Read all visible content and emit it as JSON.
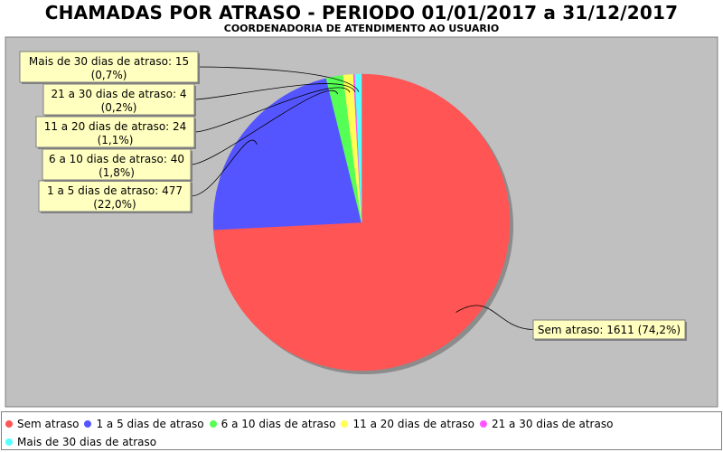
{
  "chart_data": {
    "type": "pie",
    "title": "CHAMADAS POR ATRASO - PERIODO 01/01/2017 a 31/12/2017",
    "subtitle": "COORDENADORIA DE ATENDIMENTO AO USUARIO",
    "legend_position": "bottom",
    "slices": [
      {
        "name": "Sem atraso",
        "value": 1611,
        "percent": "74,2%",
        "label": "Sem atraso: 1611 (74,2%)",
        "label_lines": [
          "Sem atraso: 1611 (74,2%)"
        ],
        "color": "#ff5555"
      },
      {
        "name": "1 a 5 dias de atraso",
        "value": 477,
        "percent": "22,0%",
        "label": "1 a 5 dias de atraso: 477",
        "label_lines": [
          "1 a 5 dias de atraso: 477",
          "(22,0%)"
        ],
        "color": "#5555ff"
      },
      {
        "name": "6 a 10 dias de atraso",
        "value": 40,
        "percent": "1,8%",
        "label": "6 a 10 dias de atraso: 40",
        "label_lines": [
          "6 a 10 dias de atraso: 40",
          "(1,8%)"
        ],
        "color": "#55ff55"
      },
      {
        "name": "11 a 20 dias de atraso",
        "value": 24,
        "percent": "1,1%",
        "label": "11 a 20 dias de atraso: 24",
        "label_lines": [
          "11 a 20 dias de atraso: 24",
          "(1,1%)"
        ],
        "color": "#ffff55"
      },
      {
        "name": "21 a 30 dias de atraso",
        "value": 4,
        "percent": "0,2%",
        "label": "21 a 30 dias de atraso: 4",
        "label_lines": [
          "21 a 30 dias de atraso: 4",
          "(0,2%)"
        ],
        "color": "#ff55ff"
      },
      {
        "name": "Mais de 30 dias de atraso",
        "value": 15,
        "percent": "0,7%",
        "label": "Mais de 30 dias de atraso: 15",
        "label_lines": [
          "Mais de 30 dias de atraso: 15",
          "(0,7%)"
        ],
        "color": "#55ffff"
      }
    ]
  }
}
